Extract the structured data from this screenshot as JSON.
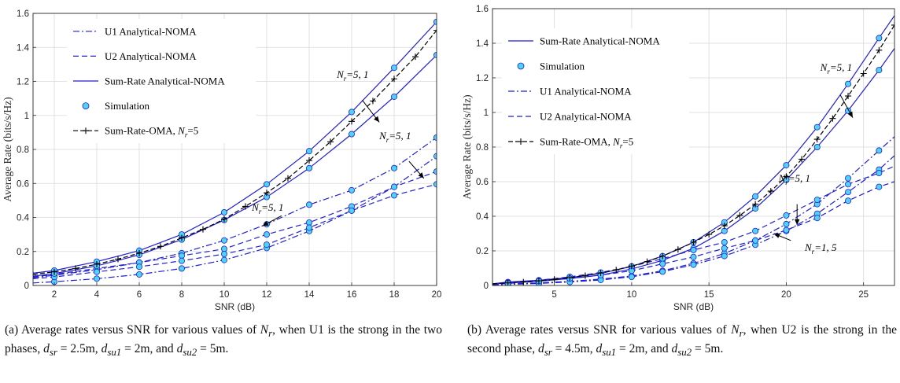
{
  "figure_a": {
    "caption_parts": {
      "p1": "(a) Average rates versus SNR for various values of ",
      "var1": "N",
      "sub1": "r",
      "p2": ", when U1 is the strong in the two phases, ",
      "v2": "d",
      "s2": "sr",
      "e2": " = 2.5m, ",
      "v3": "d",
      "s3": "su1",
      "e3": " = 2m, and ",
      "v4": "d",
      "s4": "su2",
      "e4": " = 5m."
    }
  },
  "figure_b": {
    "caption_parts": {
      "p1": "(b) Average rates versus SNR for various values of ",
      "var1": "N",
      "sub1": "r",
      "p2": ", when U2 is the strong in the second phase, ",
      "v2": "d",
      "s2": "sr",
      "e2": " = 4.5m, ",
      "v3": "d",
      "s3": "su1",
      "e3": " = 2m, and ",
      "v4": "d",
      "s4": "su2",
      "e4": " = 5m."
    }
  },
  "colors": {
    "analytical": "#1f1fd0",
    "marker_fill": "#4fd3f5",
    "marker_edge": "#1f1fd0",
    "oma": "#000000",
    "grid": "#d9d9d9"
  },
  "chart_data": [
    {
      "type": "line",
      "xlabel": "SNR (dB)",
      "ylabel": "Average Rate (bits/s/Hz)",
      "xlim": [
        1,
        20
      ],
      "ylim": [
        0,
        1.6
      ],
      "xticks": [
        2,
        4,
        6,
        8,
        10,
        12,
        14,
        16,
        18,
        20
      ],
      "yticks": [
        0,
        0.2,
        0.4,
        0.6,
        0.8,
        1,
        1.2,
        1.4,
        1.6
      ],
      "grid": true,
      "legend_position": "top-left",
      "legend": [
        {
          "label": "U1 Analytical-NOMA",
          "style": "dashdot"
        },
        {
          "label": "U2 Analytical-NOMA",
          "style": "dashed"
        },
        {
          "label": "Sum-Rate Analytical-NOMA",
          "style": "solid"
        },
        {
          "label": "Simulation",
          "style": "marker"
        },
        {
          "label": "Sum-Rate-OMA, ",
          "sub_var": "N",
          "sub": "r",
          "suffix": "=5",
          "style": "plus"
        }
      ],
      "annotations": [
        {
          "prefix": "N",
          "sub": "r",
          "text": "=5, 1",
          "at": [
            15.3,
            1.22
          ],
          "arrow_from": [
            16.5,
            1.09
          ],
          "arrow_to": [
            17.3,
            0.96
          ]
        },
        {
          "prefix": "N",
          "sub": "r",
          "text": "=5, 1",
          "at": [
            17.3,
            0.86
          ],
          "arrow_from": [
            18.7,
            0.73
          ],
          "arrow_to": [
            19.4,
            0.63
          ]
        },
        {
          "prefix": "N",
          "sub": "r",
          "text": "=5, 1",
          "at": [
            11.3,
            0.44
          ],
          "arrow_from": [
            12.7,
            0.41
          ],
          "arrow_to": [
            11.8,
            0.35
          ]
        }
      ],
      "series": [
        {
          "style": "dashdot",
          "x": [
            1,
            2,
            4,
            6,
            8,
            10,
            12,
            14,
            16,
            18,
            20
          ],
          "y": [
            0.046,
            0.06,
            0.093,
            0.135,
            0.19,
            0.265,
            0.36,
            0.475,
            0.56,
            0.69,
            0.87
          ],
          "markers_x": [
            2,
            4,
            6,
            8,
            10,
            12,
            14,
            16,
            18,
            20
          ]
        },
        {
          "style": "dashdot",
          "x": [
            1,
            2,
            4,
            6,
            8,
            10,
            12,
            14,
            16,
            18,
            20
          ],
          "y": [
            0.015,
            0.022,
            0.04,
            0.065,
            0.1,
            0.15,
            0.22,
            0.32,
            0.44,
            0.58,
            0.76
          ],
          "markers_x": [
            2,
            4,
            6,
            8,
            10,
            12,
            14,
            16,
            18,
            20
          ]
        },
        {
          "style": "dashed",
          "x": [
            1,
            2,
            4,
            6,
            8,
            10,
            12,
            14,
            16,
            18,
            20
          ],
          "y": [
            0.05,
            0.065,
            0.1,
            0.135,
            0.175,
            0.215,
            0.3,
            0.37,
            0.465,
            0.58,
            0.67
          ],
          "markers_x": [
            2,
            4,
            6,
            8,
            10,
            12,
            14,
            16,
            18,
            20
          ]
        },
        {
          "style": "dashed",
          "x": [
            1,
            2,
            4,
            6,
            8,
            10,
            12,
            14,
            16,
            18,
            20
          ],
          "y": [
            0.04,
            0.05,
            0.08,
            0.11,
            0.145,
            0.185,
            0.24,
            0.34,
            0.44,
            0.53,
            0.595
          ],
          "markers_x": [
            2,
            4,
            6,
            8,
            10,
            12,
            14,
            16,
            18,
            20
          ]
        },
        {
          "style": "solid",
          "x": [
            1,
            2,
            4,
            6,
            8,
            10,
            12,
            14,
            16,
            18,
            20
          ],
          "y": [
            0.072,
            0.088,
            0.14,
            0.205,
            0.3,
            0.43,
            0.595,
            0.79,
            1.02,
            1.28,
            1.55
          ],
          "markers_x": [
            2,
            4,
            6,
            8,
            10,
            12,
            14,
            16,
            18,
            20
          ]
        },
        {
          "style": "solid",
          "x": [
            1,
            2,
            4,
            6,
            8,
            10,
            12,
            14,
            16,
            18,
            20
          ],
          "y": [
            0.055,
            0.07,
            0.115,
            0.18,
            0.27,
            0.385,
            0.52,
            0.69,
            0.89,
            1.11,
            1.355
          ],
          "markers_x": [
            2,
            4,
            6,
            8,
            10,
            12,
            14,
            16,
            18,
            20
          ]
        },
        {
          "style": "oma",
          "x": [
            1,
            2,
            3,
            4,
            5,
            6,
            7,
            8,
            9,
            10,
            11,
            12,
            13,
            14,
            15,
            16,
            17,
            18,
            19,
            20
          ],
          "y": [
            0.065,
            0.08,
            0.1,
            0.125,
            0.155,
            0.19,
            0.23,
            0.28,
            0.33,
            0.39,
            0.465,
            0.545,
            0.63,
            0.735,
            0.845,
            0.965,
            1.085,
            1.215,
            1.345,
            1.5
          ]
        }
      ]
    },
    {
      "type": "line",
      "xlabel": "SNR (dB)",
      "ylabel": "Average Rate (bits/s/Hz)",
      "xlim": [
        1,
        27
      ],
      "ylim": [
        0,
        1.6
      ],
      "xticks": [
        5,
        10,
        15,
        20,
        25
      ],
      "yticks": [
        0,
        0.2,
        0.4,
        0.6,
        0.8,
        1,
        1.2,
        1.4,
        1.6
      ],
      "grid": true,
      "legend_position": "top-left",
      "legend": [
        {
          "label": "Sum-Rate Analytical-NOMA",
          "style": "solid"
        },
        {
          "label": "Simulation",
          "style": "marker"
        },
        {
          "label": "U1 Analytical-NOMA",
          "style": "dashdot"
        },
        {
          "label": "U2 Analytical-NOMA",
          "style": "dashed"
        },
        {
          "label": "Sum-Rate-OMA, ",
          "sub_var": "N",
          "sub": "r",
          "suffix": "=5",
          "style": "plus"
        }
      ],
      "annotations": [
        {
          "prefix": "N",
          "sub": "r",
          "text": "=5, 1",
          "at": [
            22.2,
            1.24
          ],
          "arrow_from": [
            23.5,
            1.1
          ],
          "arrow_to": [
            24.3,
            0.97
          ]
        },
        {
          "prefix": "N",
          "sub": "r",
          "text": "=5, 1",
          "at": [
            19.5,
            0.6
          ],
          "arrow_from": [
            20.7,
            0.47
          ],
          "arrow_to": [
            20.7,
            0.35
          ]
        },
        {
          "prefix": "N",
          "sub": "r",
          "text": "=1, 5",
          "at": [
            21.2,
            0.2
          ],
          "arrow_from": [
            20.3,
            0.26
          ],
          "arrow_to": [
            19.2,
            0.3
          ]
        }
      ],
      "series": [
        {
          "style": "solid",
          "x": [
            1,
            2,
            4,
            6,
            8,
            10,
            12,
            14,
            16,
            18,
            20,
            22,
            24,
            26,
            27
          ],
          "y": [
            0.01,
            0.02,
            0.03,
            0.045,
            0.07,
            0.11,
            0.17,
            0.25,
            0.365,
            0.515,
            0.695,
            0.915,
            1.165,
            1.43,
            1.56
          ],
          "markers_x": [
            2,
            4,
            6,
            8,
            10,
            12,
            14,
            16,
            18,
            20,
            22,
            24,
            26
          ]
        },
        {
          "style": "solid",
          "x": [
            1,
            2,
            4,
            6,
            8,
            10,
            12,
            14,
            16,
            18,
            20,
            22,
            24,
            26,
            27
          ],
          "y": [
            0.008,
            0.015,
            0.025,
            0.04,
            0.06,
            0.095,
            0.145,
            0.215,
            0.315,
            0.445,
            0.61,
            0.8,
            1.01,
            1.245,
            1.37
          ],
          "markers_x": [
            2,
            4,
            6,
            8,
            10,
            12,
            14,
            16,
            18,
            20,
            22,
            24,
            26
          ]
        },
        {
          "style": "dashdot",
          "x": [
            1,
            2,
            4,
            6,
            8,
            10,
            12,
            14,
            16,
            18,
            20,
            22,
            24,
            26,
            27
          ],
          "y": [
            0.004,
            0.008,
            0.015,
            0.024,
            0.037,
            0.055,
            0.085,
            0.128,
            0.185,
            0.26,
            0.355,
            0.47,
            0.62,
            0.78,
            0.86
          ],
          "markers_x": [
            2,
            4,
            6,
            8,
            10,
            12,
            14,
            16,
            18,
            20,
            22,
            24,
            26
          ]
        },
        {
          "style": "dashdot",
          "x": [
            1,
            2,
            4,
            6,
            8,
            10,
            12,
            14,
            16,
            18,
            20,
            22,
            24,
            26,
            27
          ],
          "y": [
            0.003,
            0.006,
            0.012,
            0.02,
            0.032,
            0.05,
            0.08,
            0.12,
            0.17,
            0.235,
            0.315,
            0.415,
            0.54,
            0.67,
            0.75
          ],
          "markers_x": [
            2,
            4,
            6,
            8,
            10,
            12,
            14,
            16,
            18,
            20,
            22,
            24,
            26
          ]
        },
        {
          "style": "dashed",
          "x": [
            1,
            2,
            4,
            6,
            8,
            10,
            12,
            14,
            16,
            18,
            20,
            22,
            24,
            26,
            27
          ],
          "y": [
            0.008,
            0.016,
            0.03,
            0.05,
            0.075,
            0.11,
            0.155,
            0.205,
            0.25,
            0.315,
            0.405,
            0.495,
            0.585,
            0.65,
            0.69
          ],
          "markers_x": [
            2,
            4,
            6,
            8,
            10,
            12,
            14,
            16,
            18,
            20,
            22,
            24,
            26
          ]
        },
        {
          "style": "dashed",
          "x": [
            1,
            2,
            4,
            6,
            8,
            10,
            12,
            14,
            16,
            18,
            20,
            22,
            24,
            26,
            27
          ],
          "y": [
            0.006,
            0.012,
            0.025,
            0.04,
            0.06,
            0.085,
            0.125,
            0.165,
            0.215,
            0.26,
            0.32,
            0.39,
            0.49,
            0.57,
            0.6
          ],
          "markers_x": [
            2,
            4,
            6,
            8,
            10,
            12,
            14,
            16,
            18,
            20,
            22,
            24,
            26
          ]
        },
        {
          "style": "oma",
          "x": [
            1,
            2,
            3,
            4,
            5,
            6,
            7,
            8,
            9,
            10,
            11,
            12,
            13,
            14,
            15,
            16,
            17,
            18,
            19,
            20,
            21,
            22,
            23,
            24,
            25,
            26,
            27
          ],
          "y": [
            0.01,
            0.015,
            0.02,
            0.027,
            0.035,
            0.045,
            0.057,
            0.072,
            0.09,
            0.112,
            0.138,
            0.17,
            0.208,
            0.25,
            0.295,
            0.345,
            0.405,
            0.47,
            0.545,
            0.63,
            0.73,
            0.845,
            0.965,
            1.095,
            1.225,
            1.36,
            1.505
          ]
        }
      ]
    }
  ]
}
